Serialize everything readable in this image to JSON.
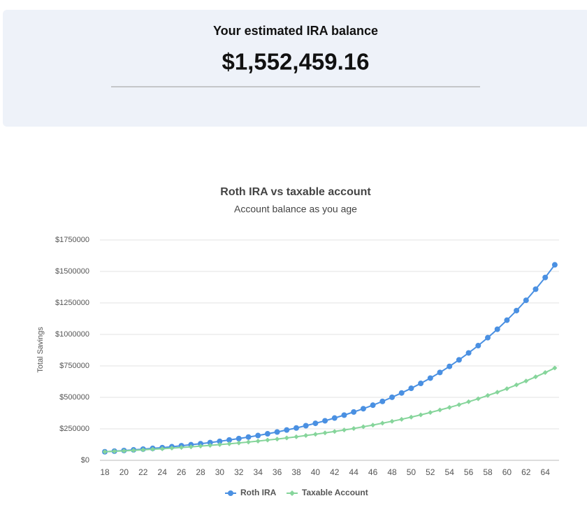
{
  "header": {
    "title": "Your estimated IRA balance",
    "amount": "$1,552,459.16"
  },
  "chart_data": {
    "type": "line",
    "title": "Roth IRA vs taxable account",
    "subtitle": "Account balance as you age",
    "y_label": "Total Savings",
    "categories": [
      "18",
      null,
      "20",
      null,
      "22",
      null,
      "24",
      null,
      "26",
      null,
      "28",
      null,
      "30",
      null,
      "32",
      null,
      "34",
      null,
      "36",
      null,
      "38",
      null,
      "40",
      null,
      "42",
      null,
      "44",
      null,
      "46",
      null,
      "48",
      null,
      "50",
      null,
      "52",
      null,
      "54",
      null,
      "56",
      null,
      "58",
      null,
      "60",
      null,
      "62",
      null,
      "64",
      null
    ],
    "series": [
      {
        "name": "Roth IRA",
        "color": "#4a90e2",
        "marker": "circle",
        "values": [
          68000,
          73000,
          78000,
          83000,
          89000,
          95000,
          101000,
          108000,
          116000,
          124000,
          132000,
          141000,
          151000,
          162000,
          173000,
          185000,
          197000,
          211000,
          225000,
          241000,
          257000,
          275000,
          294000,
          314000,
          336000,
          359000,
          384000,
          410000,
          438000,
          468000,
          501000,
          535000,
          572000,
          611000,
          653000,
          698000,
          746000,
          798000,
          853000,
          911000,
          974000,
          1041000,
          1113000,
          1189000,
          1271000,
          1359000,
          1452000,
          1552459
        ]
      },
      {
        "name": "Taxable Account",
        "color": "#86d59b",
        "marker": "diamond",
        "values": [
          68000,
          72000,
          75000,
          79000,
          83000,
          88000,
          92000,
          97000,
          102000,
          107000,
          113000,
          119000,
          125000,
          131000,
          138000,
          145000,
          153000,
          161000,
          169000,
          178000,
          187000,
          197000,
          207000,
          218000,
          229000,
          241000,
          253000,
          267000,
          280000,
          295000,
          310000,
          326000,
          343000,
          361000,
          380000,
          400000,
          420000,
          442000,
          465000,
          489000,
          515000,
          541000,
          569000,
          599000,
          630000,
          663000,
          697000,
          733000
        ]
      }
    ],
    "ylim": [
      0,
      1750000
    ],
    "yticks": [
      {
        "value": 0,
        "label": "$0"
      },
      {
        "value": 250000,
        "label": "$250000"
      },
      {
        "value": 500000,
        "label": "$500000"
      },
      {
        "value": 750000,
        "label": "$750000"
      },
      {
        "value": 1000000,
        "label": "$1000000"
      },
      {
        "value": 1250000,
        "label": "$1250000"
      },
      {
        "value": 1500000,
        "label": "$1500000"
      },
      {
        "value": 1750000,
        "label": "$1750000"
      }
    ],
    "grid": true,
    "legend": "bottom"
  }
}
